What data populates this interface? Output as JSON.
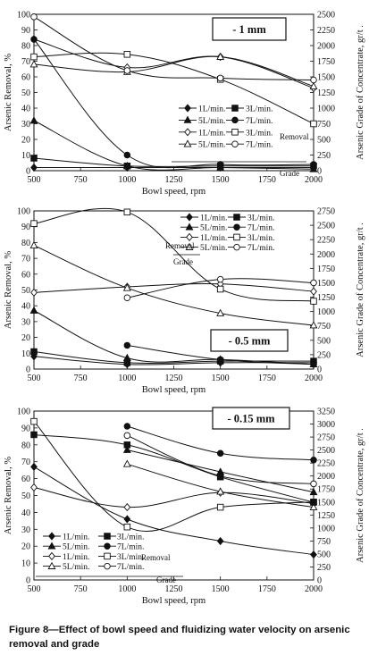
{
  "caption": "Figure 8—Effect of bowl speed and fluidizing water velocity on arsenic removal and grade",
  "chart_data": [
    {
      "type": "line",
      "panel_label": "- 1 mm",
      "xlabel": "Bowl speed, rpm",
      "ylabel": "Arsenic Removal, %",
      "y2label": "Arsenic Grade of Concentrate, gr/t .",
      "x": [
        500,
        1000,
        1500,
        2000
      ],
      "x_ticks": [
        "500",
        "750",
        "1000",
        "1250",
        "1500",
        "1750",
        "2000"
      ],
      "xlim": [
        500,
        2000
      ],
      "ylim": [
        0,
        100
      ],
      "y_ticks": [
        "0",
        "10",
        "20",
        "30",
        "40",
        "50",
        "60",
        "70",
        "80",
        "90",
        "100"
      ],
      "y2lim": [
        0,
        2500
      ],
      "y2_ticks": [
        "0",
        "250",
        "500",
        "750",
        "1000",
        "1250",
        "1500",
        "1750",
        "2000",
        "2250",
        "2500"
      ],
      "legend_group_labels": {
        "removal": "Removal",
        "grade": "Grade"
      },
      "removal_series": [
        {
          "name": "1L/min.",
          "marker": "diamond",
          "values": [
            2,
            2,
            2,
            2
          ]
        },
        {
          "name": "3L/min.",
          "marker": "square",
          "values": [
            8,
            3,
            3,
            3
          ]
        },
        {
          "name": "5L/min.",
          "marker": "triangle",
          "values": [
            32,
            3,
            2,
            1
          ]
        },
        {
          "name": "7L/min.",
          "marker": "circle",
          "values": [
            84,
            10,
            4,
            4
          ]
        }
      ],
      "grade_series": [
        {
          "name": "1L/min.",
          "marker": "diamond",
          "values": [
            2100,
            1650,
            1820,
            1320
          ]
        },
        {
          "name": "3L/min.",
          "marker": "square",
          "values": [
            1820,
            1860,
            1460,
            750
          ]
        },
        {
          "name": "5L/min.",
          "marker": "triangle",
          "values": [
            1700,
            1580,
            1820,
            1350
          ]
        },
        {
          "name": "7L/min.",
          "marker": "circle",
          "values": [
            2460,
            1600,
            1480,
            1450
          ]
        }
      ]
    },
    {
      "type": "line",
      "panel_label": "- 0.5 mm",
      "xlabel": "Bowl speed, rpm",
      "ylabel": "Arsenic Removal, %",
      "y2label": "Arsenic Grade of Concentrate, gr/t .",
      "x": [
        500,
        1000,
        1500,
        2000
      ],
      "x_ticks": [
        "500",
        "750",
        "1000",
        "1250",
        "1500",
        "1750",
        "2000"
      ],
      "xlim": [
        500,
        2000
      ],
      "ylim": [
        0,
        100
      ],
      "y_ticks": [
        "0",
        "10",
        "20",
        "30",
        "40",
        "50",
        "60",
        "70",
        "80",
        "90",
        "100"
      ],
      "y2lim": [
        0,
        2750
      ],
      "y2_ticks": [
        "0",
        "250",
        "500",
        "750",
        "1000",
        "1250",
        "1500",
        "1750",
        "2000",
        "2250",
        "2500",
        "2750"
      ],
      "legend_group_labels": {
        "removal": "Removal",
        "grade": "Grade"
      },
      "removal_series": [
        {
          "name": "1L/min.",
          "marker": "diamond",
          "values": [
            8,
            3,
            4,
            4
          ]
        },
        {
          "name": "3L/min.",
          "marker": "square",
          "values": [
            11,
            4,
            5,
            5
          ]
        },
        {
          "name": "5L/min.",
          "marker": "triangle",
          "values": [
            37,
            7,
            6,
            3
          ]
        },
        {
          "name": "7L/min.",
          "marker": "circle",
          "values": [
            null,
            15,
            6,
            3
          ]
        }
      ],
      "grade_series": [
        {
          "name": "1L/min.",
          "marker": "diamond",
          "values": [
            1330,
            1430,
            1480,
            1350
          ]
        },
        {
          "name": "3L/min.",
          "marker": "square",
          "values": [
            2530,
            2730,
            1390,
            1180
          ]
        },
        {
          "name": "5L/min.",
          "marker": "triangle",
          "values": [
            2150,
            1410,
            970,
            760
          ]
        },
        {
          "name": "7L/min.",
          "marker": "circle",
          "values": [
            null,
            1240,
            1560,
            1500
          ]
        }
      ]
    },
    {
      "type": "line",
      "panel_label": "- 0.15 mm",
      "xlabel": "Bowl speed, rpm",
      "ylabel": "Arsenic Removal, %",
      "y2label": "Arsenic Grade of Concentrate, gr/t .",
      "x": [
        500,
        1000,
        1500,
        2000
      ],
      "x_ticks": [
        "500",
        "750",
        "1000",
        "1250",
        "1500",
        "1750",
        "2000"
      ],
      "xlim": [
        500,
        2000
      ],
      "ylim": [
        0,
        100
      ],
      "y_ticks": [
        "0",
        "10",
        "20",
        "30",
        "40",
        "50",
        "60",
        "70",
        "80",
        "90",
        "100"
      ],
      "y2lim": [
        0,
        3250
      ],
      "y2_ticks": [
        "0",
        "250",
        "500",
        "750",
        "1000",
        "1250",
        "1500",
        "1750",
        "2000",
        "2250",
        "2500",
        "2750",
        "3000",
        "3250"
      ],
      "legend_group_labels": {
        "removal": "Removal",
        "grade": "Grade"
      },
      "removal_series": [
        {
          "name": "1L/min.",
          "marker": "diamond",
          "values": [
            67,
            36,
            23,
            15
          ]
        },
        {
          "name": "3L/min.",
          "marker": "square",
          "values": [
            86,
            80,
            61,
            46
          ]
        },
        {
          "name": "5L/min.",
          "marker": "triangle",
          "values": [
            null,
            77,
            64,
            52
          ]
        },
        {
          "name": "7L/min.",
          "marker": "circle",
          "values": [
            null,
            91,
            75,
            71
          ]
        }
      ],
      "grade_series": [
        {
          "name": "1L/min.",
          "marker": "diamond",
          "values": [
            1780,
            1400,
            1680,
            1470
          ]
        },
        {
          "name": "3L/min.",
          "marker": "square",
          "values": [
            3050,
            1020,
            1400,
            1500
          ]
        },
        {
          "name": "5L/min.",
          "marker": "triangle",
          "values": [
            null,
            2230,
            1700,
            1400
          ]
        },
        {
          "name": "7L/min.",
          "marker": "circle",
          "values": [
            null,
            2780,
            2000,
            1850
          ]
        }
      ]
    }
  ]
}
